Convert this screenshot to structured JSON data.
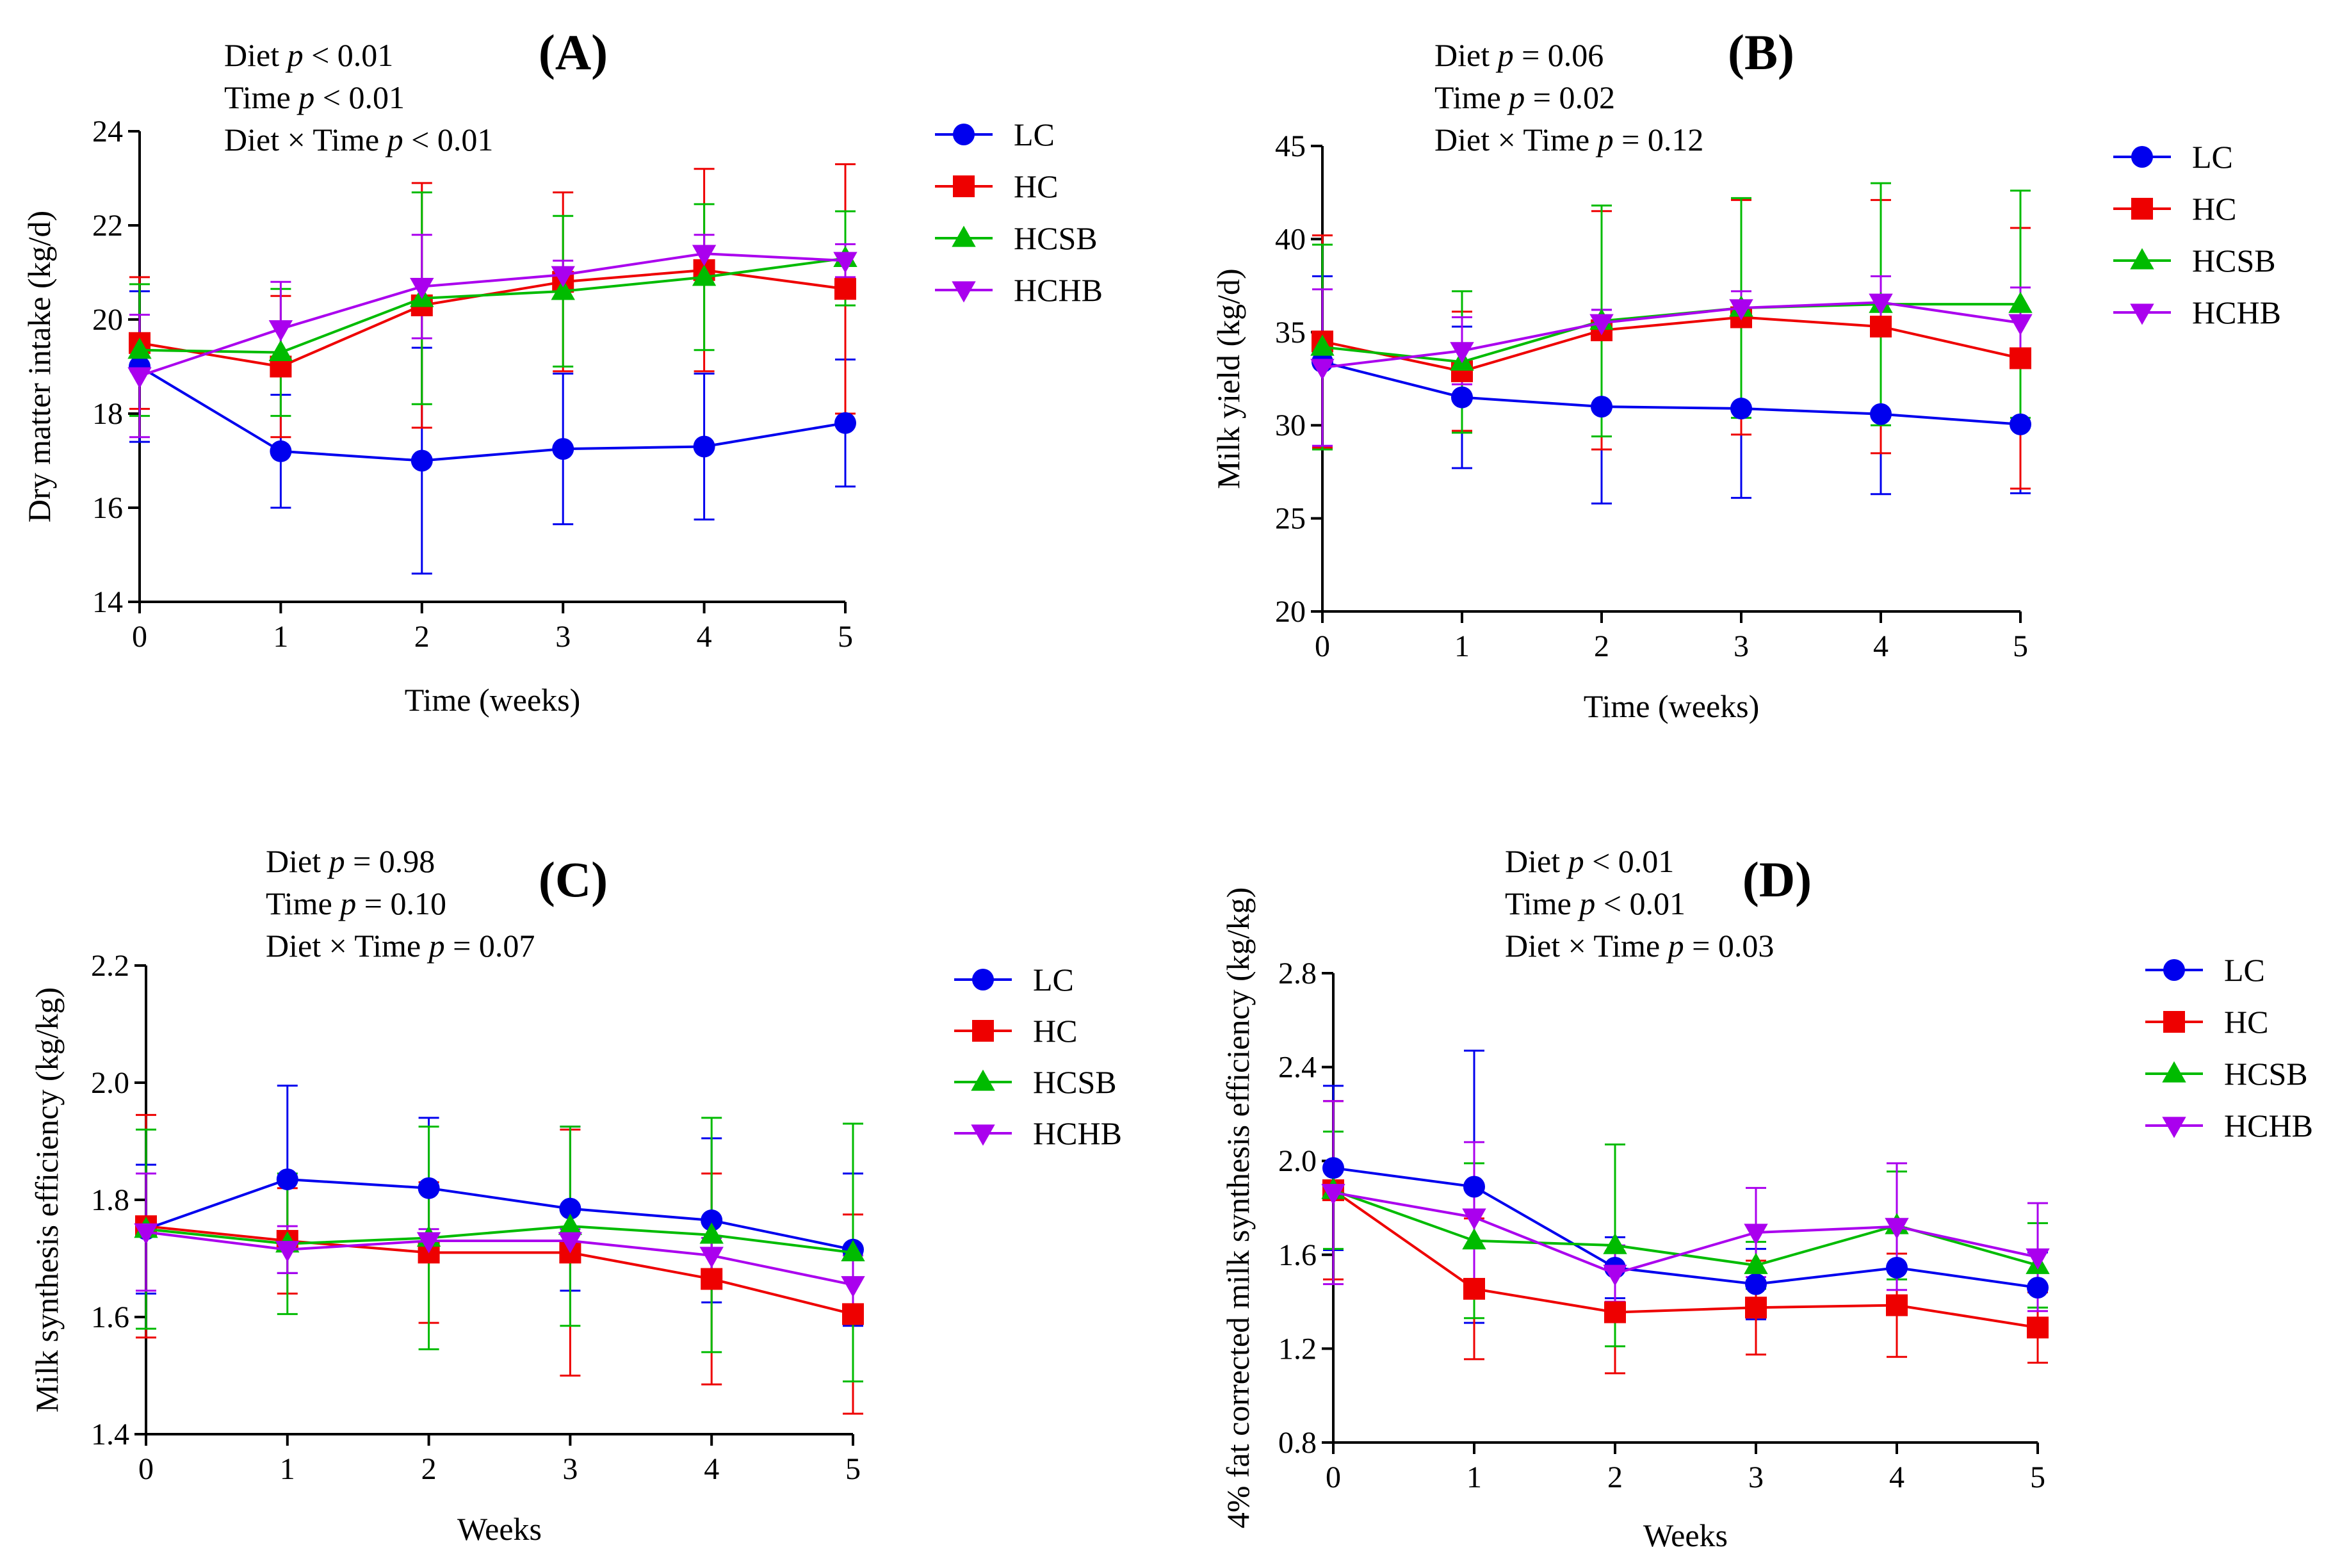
{
  "figure": {
    "series_style": [
      {
        "name": "LC",
        "color": "#0000ee",
        "marker": "circle"
      },
      {
        "name": "HC",
        "color": "#ee0000",
        "marker": "square"
      },
      {
        "name": "HCSB",
        "color": "#00bb00",
        "marker": "triangle-up"
      },
      {
        "name": "HCHB",
        "color": "#aa00ee",
        "marker": "triangle-down"
      }
    ]
  },
  "chart_data": [
    {
      "panel": "(A)",
      "type": "line",
      "stats": [
        {
          "pre": "Diet ",
          "p": "p",
          "post": " < 0.01"
        },
        {
          "pre": "Time ",
          "p": "p",
          "post": " < 0.01"
        },
        {
          "pre": "Diet × Time ",
          "p": "p",
          "post": " < 0.01"
        }
      ],
      "xlabel": "Time (weeks)",
      "ylabel": "Dry matter intake (kg/d)",
      "x": [
        0,
        1,
        2,
        3,
        4,
        5
      ],
      "xlim": [
        0,
        5
      ],
      "ylim": [
        14,
        24
      ],
      "yticks": [
        14,
        16,
        18,
        20,
        22,
        24
      ],
      "ytick_labels": [
        "14",
        "16",
        "18",
        "20",
        "22",
        "24"
      ],
      "xticks": [
        0,
        1,
        2,
        3,
        4,
        5
      ],
      "xtick_labels": [
        "0",
        "1",
        "2",
        "3",
        "4",
        "5"
      ],
      "series": [
        {
          "name": "LC",
          "values": [
            19.0,
            17.2,
            17.0,
            17.25,
            17.3,
            17.8
          ],
          "err": [
            1.6,
            1.2,
            2.4,
            1.6,
            1.55,
            1.35
          ]
        },
        {
          "name": "HC",
          "values": [
            19.5,
            19.0,
            20.3,
            20.8,
            21.05,
            20.65
          ],
          "err": [
            1.4,
            1.5,
            2.6,
            1.9,
            2.15,
            2.65
          ]
        },
        {
          "name": "HCSB",
          "values": [
            19.35,
            19.3,
            20.45,
            20.6,
            20.9,
            21.3
          ],
          "err": [
            1.4,
            1.35,
            2.25,
            1.6,
            1.55,
            1.0
          ]
        },
        {
          "name": "HCHB",
          "values": [
            18.8,
            19.8,
            20.7,
            20.95,
            21.4,
            21.25
          ],
          "err": [
            1.3,
            1.0,
            1.1,
            0.3,
            0.4,
            0.35
          ]
        }
      ]
    },
    {
      "panel": "(B)",
      "type": "line",
      "stats": [
        {
          "pre": "Diet ",
          "p": "p",
          "post": " = 0.06"
        },
        {
          "pre": "Time ",
          "p": "p",
          "post": " = 0.02"
        },
        {
          "pre": "Diet × Time ",
          "p": "p",
          "post": " = 0.12"
        }
      ],
      "xlabel": "Time (weeks)",
      "ylabel": "Milk yield (kg/d)",
      "x": [
        0,
        1,
        2,
        3,
        4,
        5
      ],
      "xlim": [
        0,
        5
      ],
      "ylim": [
        20,
        45
      ],
      "yticks": [
        20,
        25,
        30,
        35,
        40,
        45
      ],
      "ytick_labels": [
        "20",
        "25",
        "30",
        "35",
        "40",
        "45"
      ],
      "xticks": [
        0,
        1,
        2,
        3,
        4,
        5
      ],
      "xtick_labels": [
        "0",
        "1",
        "2",
        "3",
        "4",
        "5"
      ],
      "series": [
        {
          "name": "LC",
          "values": [
            33.4,
            31.5,
            31.0,
            30.9,
            30.6,
            30.05
          ],
          "err": [
            4.6,
            3.8,
            5.2,
            4.8,
            4.3,
            3.7
          ]
        },
        {
          "name": "HC",
          "values": [
            34.5,
            32.9,
            35.1,
            35.8,
            35.3,
            33.6
          ],
          "err": [
            5.7,
            3.2,
            6.4,
            6.3,
            6.8,
            7.0
          ]
        },
        {
          "name": "HCSB",
          "values": [
            34.2,
            33.4,
            35.6,
            36.3,
            36.5,
            36.5
          ],
          "err": [
            5.5,
            3.8,
            6.2,
            5.9,
            6.5,
            6.1
          ]
        },
        {
          "name": "HCHB",
          "values": [
            33.1,
            34.0,
            35.5,
            36.3,
            36.6,
            35.5
          ],
          "err": [
            4.2,
            1.8,
            0.7,
            0.9,
            1.4,
            1.9
          ]
        }
      ]
    },
    {
      "panel": "(C)",
      "type": "line",
      "stats": [
        {
          "pre": "Diet ",
          "p": "p",
          "post": " = 0.98"
        },
        {
          "pre": "Time ",
          "p": "p",
          "post": " = 0.10"
        },
        {
          "pre": "Diet × Time ",
          "p": "p",
          "post": " = 0.07"
        }
      ],
      "xlabel": "Weeks",
      "ylabel": "Milk synthesis efficiency (kg/kg)",
      "x": [
        0,
        1,
        2,
        3,
        4,
        5
      ],
      "xlim": [
        0,
        5
      ],
      "ylim": [
        1.4,
        2.2
      ],
      "yticks": [
        1.4,
        1.6,
        1.8,
        2.0,
        2.2
      ],
      "ytick_labels": [
        "1.4",
        "1.6",
        "1.8",
        "2.0",
        "2.2"
      ],
      "xticks": [
        0,
        1,
        2,
        3,
        4,
        5
      ],
      "xtick_labels": [
        "0",
        "1",
        "2",
        "3",
        "4",
        "5"
      ],
      "series": [
        {
          "name": "LC",
          "values": [
            1.75,
            1.835,
            1.82,
            1.785,
            1.765,
            1.715
          ],
          "err": [
            0.11,
            0.16,
            0.12,
            0.14,
            0.14,
            0.13
          ]
        },
        {
          "name": "HC",
          "values": [
            1.755,
            1.73,
            1.71,
            1.71,
            1.665,
            1.605
          ],
          "err": [
            0.19,
            0.09,
            0.12,
            0.21,
            0.18,
            0.17
          ]
        },
        {
          "name": "HCSB",
          "values": [
            1.75,
            1.725,
            1.735,
            1.755,
            1.74,
            1.71
          ],
          "err": [
            0.17,
            0.12,
            0.19,
            0.17,
            0.2,
            0.22
          ]
        },
        {
          "name": "HCHB",
          "values": [
            1.745,
            1.715,
            1.73,
            1.73,
            1.705,
            1.655
          ],
          "err": [
            0.1,
            0.04,
            0.02,
            0.02,
            0.03,
            0.05
          ]
        }
      ]
    },
    {
      "panel": "(D)",
      "type": "line",
      "stats": [
        {
          "pre": "Diet ",
          "p": "p",
          "post": " < 0.01"
        },
        {
          "pre": "Time ",
          "p": "p",
          "post": " < 0.01"
        },
        {
          "pre": "Diet × Time ",
          "p": "p",
          "post": " = 0.03"
        }
      ],
      "xlabel": "Weeks",
      "ylabel": "4% fat corrected milk synthesis efficiency (kg/kg)",
      "x": [
        0,
        1,
        2,
        3,
        4,
        5
      ],
      "xlim": [
        0,
        5
      ],
      "ylim": [
        0.8,
        2.8
      ],
      "yticks": [
        0.8,
        1.2,
        1.6,
        2.0,
        2.4,
        2.8
      ],
      "ytick_labels": [
        "0.8",
        "1.2",
        "1.6",
        "2.0",
        "2.4",
        "2.8"
      ],
      "xticks": [
        0,
        1,
        2,
        3,
        4,
        5
      ],
      "xtick_labels": [
        "0",
        "1",
        "2",
        "3",
        "4",
        "5"
      ],
      "series": [
        {
          "name": "LC",
          "values": [
            1.97,
            1.89,
            1.545,
            1.475,
            1.545,
            1.46
          ],
          "err": [
            0.35,
            0.58,
            0.13,
            0.15,
            0.17,
            0.15
          ]
        },
        {
          "name": "HC",
          "values": [
            1.875,
            1.455,
            1.355,
            1.375,
            1.385,
            1.29
          ],
          "err": [
            0.38,
            0.3,
            0.26,
            0.2,
            0.22,
            0.15
          ]
        },
        {
          "name": "HCSB",
          "values": [
            1.875,
            1.66,
            1.64,
            1.555,
            1.725,
            1.555
          ],
          "err": [
            0.25,
            0.33,
            0.43,
            0.1,
            0.23,
            0.18
          ]
        },
        {
          "name": "HCHB",
          "values": [
            1.865,
            1.76,
            1.52,
            1.695,
            1.72,
            1.59
          ],
          "err": [
            0.39,
            0.32,
            0.12,
            0.19,
            0.27,
            0.23
          ]
        }
      ]
    }
  ]
}
